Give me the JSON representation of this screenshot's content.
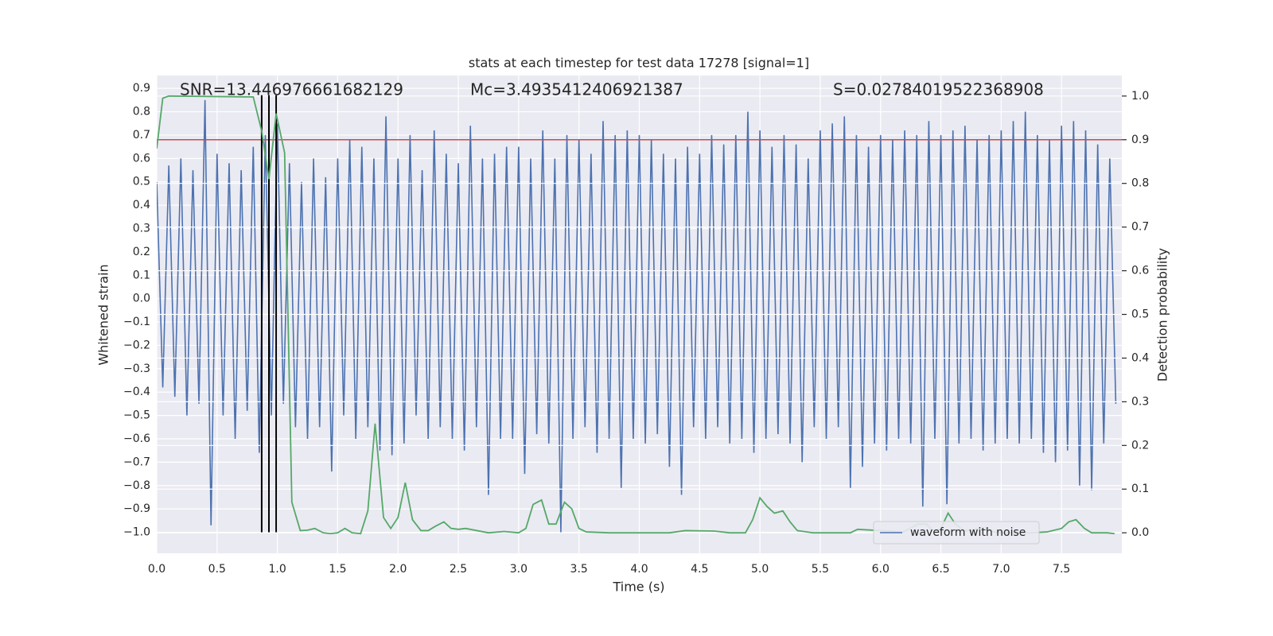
{
  "chart_data": {
    "type": "line",
    "title": "stats at each timestep for test data 17278 [signal=1]",
    "xlabel": "Time (s)",
    "ylabel": "Whitened strain",
    "y2label": "Detection probability",
    "annotations": [
      "SNR=13.446976661682129",
      "Mc=3.4935412406921387",
      "S=0.02784019522368908"
    ],
    "xlim": [
      0,
      8.0
    ],
    "ylim": [
      -1.09,
      0.955
    ],
    "y2lim": [
      -0.047,
      1.047
    ],
    "xticks": [
      {
        "value": 0,
        "label": "0.0"
      },
      0.5,
      {
        "value": 1,
        "label": "1.0"
      },
      1.5,
      {
        "value": 2,
        "label": "2.0"
      },
      2.5,
      {
        "value": 3,
        "label": "3.0"
      },
      3.5,
      {
        "value": 4,
        "label": "4.0"
      },
      4.5,
      {
        "value": 5,
        "label": "5.0"
      },
      5.5,
      {
        "value": 6,
        "label": "6.0"
      },
      6.5,
      {
        "value": 7,
        "label": "7.0"
      },
      7.5
    ],
    "yticks": [
      {
        "value": -1.0,
        "label": "−1.0"
      },
      {
        "value": -0.9,
        "label": "−0.9"
      },
      {
        "value": -0.8,
        "label": "−0.8"
      },
      {
        "value": -0.7,
        "label": "−0.7"
      },
      {
        "value": -0.6,
        "label": "−0.6"
      },
      {
        "value": -0.5,
        "label": "−0.5"
      },
      {
        "value": -0.4,
        "label": "−0.4"
      },
      {
        "value": -0.3,
        "label": "−0.3"
      },
      {
        "value": -0.2,
        "label": "−0.2"
      },
      {
        "value": -0.1,
        "label": "−0.1"
      },
      {
        "value": 0,
        "label": "0.0"
      },
      0.1,
      0.2,
      0.3,
      0.4,
      0.5,
      0.6,
      0.7,
      0.8,
      0.9
    ],
    "y2ticks": [
      {
        "value": 0,
        "label": "0.0"
      },
      0.1,
      0.2,
      0.3,
      0.4,
      0.5,
      0.6,
      0.7,
      0.8,
      0.9,
      {
        "value": 1,
        "label": "1.0"
      }
    ],
    "grid": true,
    "legend": "lower right",
    "threshold": 0.9,
    "threshold_color": "#c44e52",
    "vlines": [
      0.87,
      0.93,
      0.99
    ],
    "vline_color": "#000000",
    "series": [
      {
        "name": "waveform with noise",
        "color": "#4c72b0",
        "x": [
          0,
          0.05,
          0.1,
          0.15,
          0.2,
          0.25,
          0.3,
          0.35,
          0.4,
          0.45,
          0.5,
          0.55,
          0.6,
          0.65,
          0.7,
          0.75,
          0.8,
          0.85,
          0.9,
          0.95,
          1,
          1.05,
          1.1,
          1.15,
          1.2,
          1.25,
          1.3,
          1.35,
          1.4,
          1.45,
          1.5,
          1.55,
          1.6,
          1.65,
          1.7,
          1.75,
          1.8,
          1.85,
          1.9,
          1.95,
          2,
          2.05,
          2.1,
          2.15,
          2.2,
          2.25,
          2.3,
          2.35,
          2.4,
          2.45,
          2.5,
          2.55,
          2.6,
          2.65,
          2.7,
          2.75,
          2.8,
          2.85,
          2.9,
          2.95,
          3,
          3.05,
          3.1,
          3.15,
          3.2,
          3.25,
          3.3,
          3.35,
          3.4,
          3.45,
          3.5,
          3.55,
          3.6,
          3.65,
          3.7,
          3.75,
          3.8,
          3.85,
          3.9,
          3.95,
          4,
          4.05,
          4.1,
          4.15,
          4.2,
          4.25,
          4.3,
          4.35,
          4.4,
          4.45,
          4.5,
          4.55,
          4.6,
          4.65,
          4.7,
          4.75,
          4.8,
          4.85,
          4.9,
          4.95,
          5,
          5.05,
          5.1,
          5.15,
          5.2,
          5.25,
          5.3,
          5.35,
          5.4,
          5.45,
          5.5,
          5.55,
          5.6,
          5.65,
          5.7,
          5.75,
          5.8,
          5.85,
          5.9,
          5.95,
          6,
          6.05,
          6.1,
          6.15,
          6.2,
          6.25,
          6.3,
          6.35,
          6.4,
          6.45,
          6.5,
          6.55,
          6.6,
          6.65,
          6.7,
          6.75,
          6.8,
          6.85,
          6.9,
          6.95,
          7,
          7.05,
          7.1,
          7.15,
          7.2,
          7.25,
          7.3,
          7.35,
          7.4,
          7.45,
          7.5,
          7.55,
          7.6,
          7.65,
          7.7,
          7.75,
          7.8,
          7.85,
          7.9,
          7.95
        ],
        "values": [
          0.5,
          -0.38,
          0.57,
          -0.42,
          0.6,
          -0.5,
          0.55,
          -0.45,
          0.85,
          -0.97,
          0.62,
          -0.5,
          0.58,
          -0.6,
          0.55,
          -0.48,
          0.65,
          -0.66,
          0.7,
          -0.5,
          0.75,
          -0.45,
          0.58,
          -0.55,
          0.5,
          -0.6,
          0.6,
          -0.55,
          0.52,
          -0.74,
          0.6,
          -0.5,
          0.68,
          -0.6,
          0.65,
          -0.55,
          0.6,
          -0.65,
          0.78,
          -0.67,
          0.6,
          -0.62,
          0.7,
          -0.5,
          0.55,
          -0.6,
          0.72,
          -0.55,
          0.62,
          -0.6,
          0.58,
          -0.65,
          0.74,
          -0.55,
          0.6,
          -0.84,
          0.62,
          -0.6,
          0.65,
          -0.6,
          0.65,
          -0.75,
          0.6,
          -0.58,
          0.72,
          -0.62,
          0.6,
          -1.0,
          0.7,
          -0.6,
          0.68,
          -0.55,
          0.62,
          -0.66,
          0.76,
          -0.6,
          0.7,
          -0.81,
          0.72,
          -0.6,
          0.7,
          -0.62,
          0.68,
          -0.58,
          0.62,
          -0.72,
          0.6,
          -0.84,
          0.65,
          -0.55,
          0.62,
          -0.6,
          0.7,
          -0.55,
          0.66,
          -0.62,
          0.7,
          -0.6,
          0.8,
          -0.66,
          0.72,
          -0.6,
          0.65,
          -0.58,
          0.7,
          -0.62,
          0.66,
          -0.7,
          0.6,
          -0.55,
          0.72,
          -0.6,
          0.75,
          -0.55,
          0.78,
          -0.81,
          0.7,
          -0.72,
          0.65,
          -0.62,
          0.7,
          -0.65,
          0.68,
          -0.6,
          0.72,
          -0.62,
          0.7,
          -0.89,
          0.76,
          -0.6,
          0.7,
          -0.88,
          0.72,
          -0.62,
          0.74,
          -0.6,
          0.68,
          -0.65,
          0.7,
          -0.62,
          0.72,
          -0.6,
          0.76,
          -0.62,
          0.8,
          -0.6,
          0.7,
          -0.66,
          0.68,
          -0.7,
          0.74,
          -0.65,
          0.76,
          -0.8,
          0.72,
          -0.82,
          0.66,
          -0.62,
          0.6,
          -0.45
        ]
      },
      {
        "color": "#55a868",
        "axis": "y2",
        "x": [
          0,
          0.05,
          0.1,
          0.8,
          0.87,
          0.93,
          0.99,
          1.06,
          1.12,
          1.19,
          1.25,
          1.31,
          1.38,
          1.44,
          1.5,
          1.56,
          1.62,
          1.69,
          1.75,
          1.81,
          1.88,
          1.94,
          2,
          2.06,
          2.12,
          2.19,
          2.25,
          2.31,
          2.38,
          2.44,
          2.5,
          2.56,
          2.75,
          2.88,
          3,
          3.06,
          3.12,
          3.19,
          3.25,
          3.31,
          3.38,
          3.44,
          3.5,
          3.56,
          3.75,
          4,
          4.25,
          4.38,
          4.62,
          4.75,
          4.88,
          4.94,
          5,
          5.06,
          5.12,
          5.19,
          5.25,
          5.31,
          5.44,
          5.75,
          5.81,
          6,
          6.19,
          6.31,
          6.38,
          6.44,
          6.5,
          6.56,
          6.62,
          6.69,
          6.75,
          6.81,
          6.88,
          6.94,
          7,
          7.25,
          7.38,
          7.5,
          7.56,
          7.62,
          7.69,
          7.75,
          7.88,
          7.94
        ],
        "values": [
          0.88,
          0.995,
          1.0,
          0.998,
          0.92,
          0.81,
          0.96,
          0.87,
          0.07,
          0.005,
          0.006,
          0.01,
          0.0,
          -0.002,
          0.0,
          0.01,
          0.0,
          -0.002,
          0.05,
          0.25,
          0.035,
          0.01,
          0.035,
          0.115,
          0.03,
          0.005,
          0.005,
          0.015,
          0.025,
          0.01,
          0.008,
          0.01,
          0.0,
          0.003,
          0.0,
          0.01,
          0.065,
          0.075,
          0.02,
          0.02,
          0.07,
          0.055,
          0.01,
          0.002,
          0.0,
          0.0,
          0.0,
          0.005,
          0.004,
          0.0,
          0.0,
          0.03,
          0.08,
          0.06,
          0.045,
          0.05,
          0.025,
          0.005,
          0.0,
          0.0,
          0.008,
          0.005,
          0.002,
          0.02,
          0.02,
          0.003,
          0.01,
          0.045,
          0.02,
          0.005,
          0.005,
          0.01,
          0.01,
          0.002,
          0.0,
          0.0,
          0.002,
          0.01,
          0.025,
          0.03,
          0.01,
          0.0,
          0.0,
          -0.002
        ]
      }
    ]
  }
}
